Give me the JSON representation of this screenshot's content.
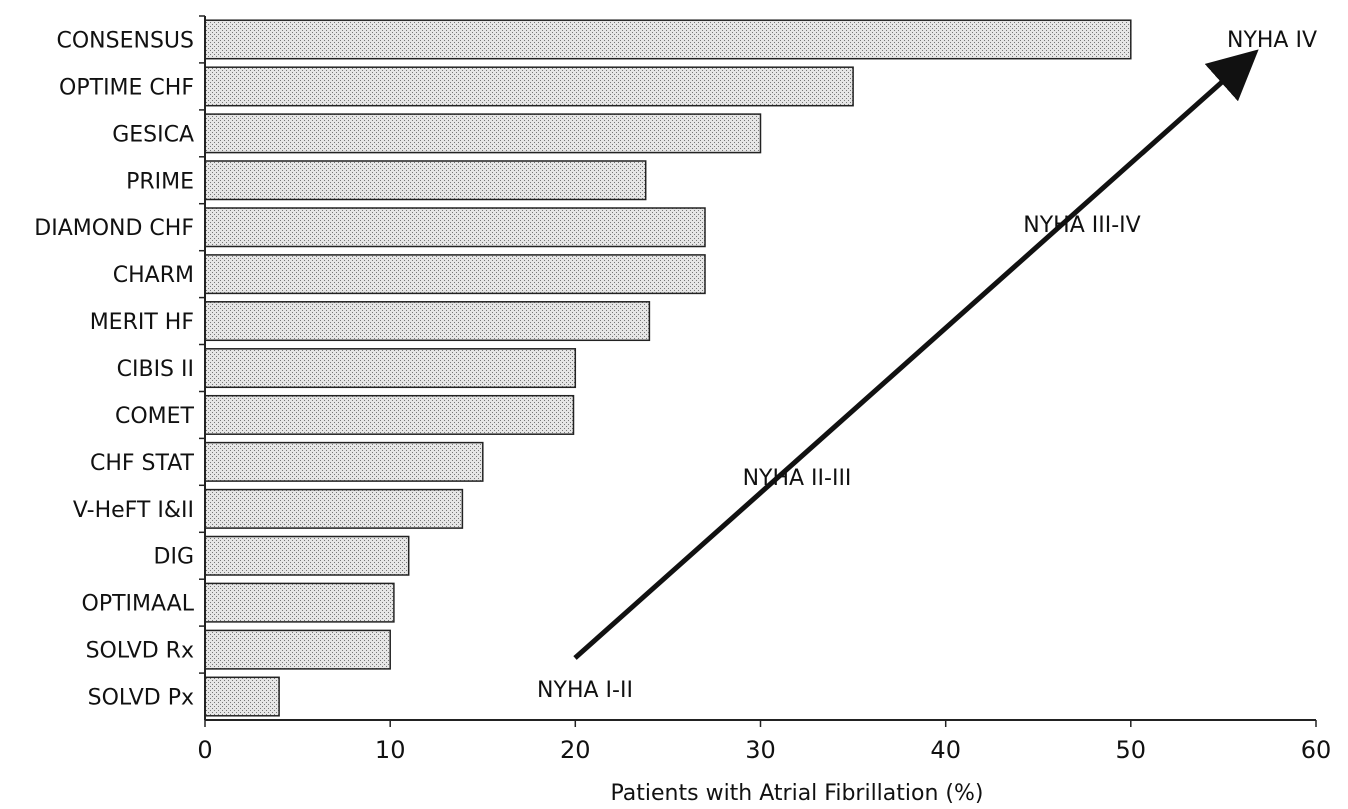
{
  "chart_data": {
    "type": "bar",
    "orientation": "horizontal",
    "categories": [
      "CONSENSUS",
      "OPTIME CHF",
      "GESICA",
      "PRIME",
      "DIAMOND CHF",
      "CHARM",
      "MERIT HF",
      "CIBIS II",
      "COMET",
      "CHF STAT",
      "V-HeFT I&II",
      "DIG",
      "OPTIMAAL",
      "SOLVD Rx",
      "SOLVD Px"
    ],
    "values": [
      50,
      35,
      30,
      23.8,
      27,
      27,
      24,
      20,
      19.9,
      15,
      13.9,
      11,
      10.2,
      10,
      4
    ],
    "xlabel": "Patients with Atrial Fibrillation (%)",
    "xlim": [
      0,
      60
    ],
    "xticks": [
      "0",
      "10",
      "20",
      "30",
      "40",
      "50",
      "60"
    ],
    "grid": false,
    "annotations": [
      "NYHA I-II",
      "NYHA II-III",
      "NYHA III-IV",
      "NYHA IV"
    ]
  }
}
